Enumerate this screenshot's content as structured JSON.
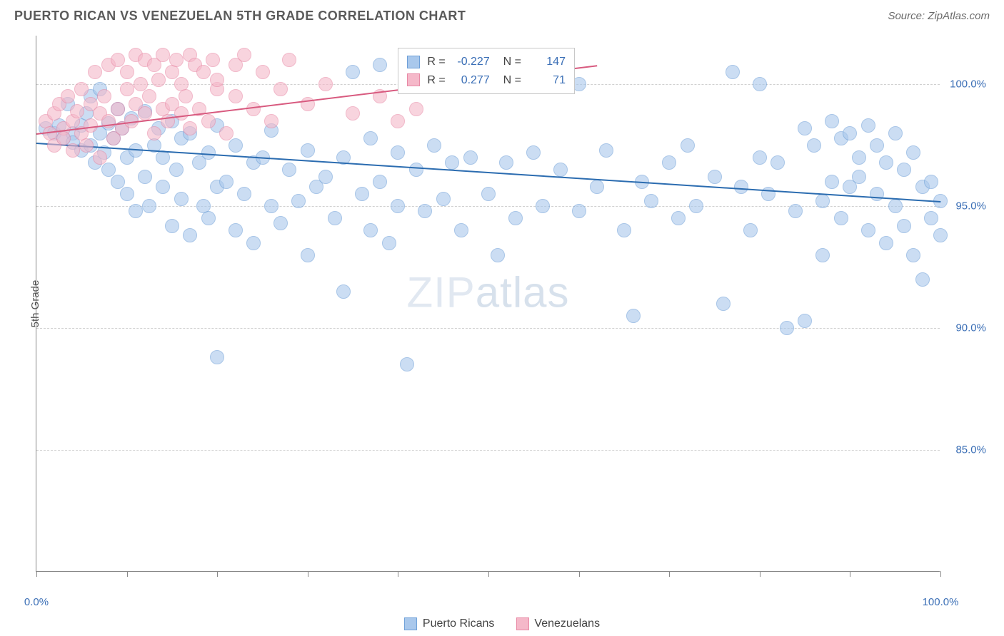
{
  "header": {
    "title": "PUERTO RICAN VS VENEZUELAN 5TH GRADE CORRELATION CHART",
    "source": "Source: ZipAtlas.com"
  },
  "chart": {
    "type": "scatter",
    "ylabel": "5th Grade",
    "watermark": "ZIPatlas",
    "background_color": "#ffffff",
    "grid_color": "#d0d0d0",
    "axis_color": "#888888",
    "label_fontsize": 15,
    "tick_fontcolor": "#3b6fb6",
    "xlim": [
      0,
      100
    ],
    "ylim": [
      80,
      102
    ],
    "xticks": [
      0,
      10,
      20,
      30,
      40,
      50,
      60,
      70,
      80,
      90,
      100
    ],
    "xtick_labels": {
      "0": "0.0%",
      "100": "100.0%"
    },
    "yticks": [
      85,
      90,
      95,
      100
    ],
    "ytick_labels": {
      "85": "85.0%",
      "90": "90.0%",
      "95": "95.0%",
      "100": "100.0%"
    },
    "point_radius": 10,
    "series": [
      {
        "name": "Puerto Ricans",
        "color_fill": "#a9c8ec",
        "color_stroke": "#6fa0d8",
        "opacity": 0.6,
        "trend": {
          "x1": 0,
          "y1": 97.6,
          "x2": 100,
          "y2": 95.2,
          "color": "#2b6cb0",
          "width": 2
        },
        "R": "-0.227",
        "N": "147",
        "points": [
          [
            1,
            98.2
          ],
          [
            2,
            98.0
          ],
          [
            2.5,
            98.3
          ],
          [
            3,
            97.8
          ],
          [
            3.5,
            99.2
          ],
          [
            4,
            98.0
          ],
          [
            4,
            97.6
          ],
          [
            5,
            98.3
          ],
          [
            5,
            97.3
          ],
          [
            5.5,
            98.8
          ],
          [
            6,
            97.5
          ],
          [
            6,
            99.5
          ],
          [
            6.5,
            96.8
          ],
          [
            7,
            98.0
          ],
          [
            7,
            99.8
          ],
          [
            7.5,
            97.2
          ],
          [
            8,
            98.4
          ],
          [
            8,
            96.5
          ],
          [
            8.5,
            97.8
          ],
          [
            9,
            99.0
          ],
          [
            9,
            96.0
          ],
          [
            9.5,
            98.2
          ],
          [
            10,
            97.0
          ],
          [
            10,
            95.5
          ],
          [
            10.5,
            98.6
          ],
          [
            11,
            97.3
          ],
          [
            11,
            94.8
          ],
          [
            12,
            98.9
          ],
          [
            12,
            96.2
          ],
          [
            12.5,
            95.0
          ],
          [
            13,
            97.5
          ],
          [
            13.5,
            98.2
          ],
          [
            14,
            95.8
          ],
          [
            14,
            97.0
          ],
          [
            15,
            98.5
          ],
          [
            15,
            94.2
          ],
          [
            15.5,
            96.5
          ],
          [
            16,
            97.8
          ],
          [
            16,
            95.3
          ],
          [
            17,
            98.0
          ],
          [
            17,
            93.8
          ],
          [
            18,
            96.8
          ],
          [
            18.5,
            95.0
          ],
          [
            19,
            97.2
          ],
          [
            19,
            94.5
          ],
          [
            20,
            98.3
          ],
          [
            20,
            95.8
          ],
          [
            20,
            88.8
          ],
          [
            21,
            96.0
          ],
          [
            22,
            94.0
          ],
          [
            22,
            97.5
          ],
          [
            23,
            95.5
          ],
          [
            24,
            96.8
          ],
          [
            24,
            93.5
          ],
          [
            25,
            97.0
          ],
          [
            26,
            95.0
          ],
          [
            26,
            98.1
          ],
          [
            27,
            94.3
          ],
          [
            28,
            96.5
          ],
          [
            29,
            95.2
          ],
          [
            30,
            97.3
          ],
          [
            30,
            93.0
          ],
          [
            31,
            95.8
          ],
          [
            32,
            96.2
          ],
          [
            33,
            94.5
          ],
          [
            34,
            91.5
          ],
          [
            34,
            97.0
          ],
          [
            35,
            100.5
          ],
          [
            36,
            95.5
          ],
          [
            37,
            94.0
          ],
          [
            37,
            97.8
          ],
          [
            38,
            100.8
          ],
          [
            38,
            96.0
          ],
          [
            39,
            93.5
          ],
          [
            40,
            97.2
          ],
          [
            40,
            95.0
          ],
          [
            41,
            88.5
          ],
          [
            42,
            96.5
          ],
          [
            43,
            94.8
          ],
          [
            44,
            97.5
          ],
          [
            45,
            95.3
          ],
          [
            46,
            96.8
          ],
          [
            47,
            94.0
          ],
          [
            48,
            97.0
          ],
          [
            50,
            95.5
          ],
          [
            51,
            93.0
          ],
          [
            52,
            96.8
          ],
          [
            53,
            94.5
          ],
          [
            55,
            97.2
          ],
          [
            55,
            100.2
          ],
          [
            56,
            95.0
          ],
          [
            57,
            100.5
          ],
          [
            58,
            96.5
          ],
          [
            60,
            94.8
          ],
          [
            60,
            100.0
          ],
          [
            62,
            95.8
          ],
          [
            63,
            97.3
          ],
          [
            65,
            94.0
          ],
          [
            66,
            90.5
          ],
          [
            67,
            96.0
          ],
          [
            68,
            95.2
          ],
          [
            70,
            96.8
          ],
          [
            71,
            94.5
          ],
          [
            72,
            97.5
          ],
          [
            73,
            95.0
          ],
          [
            75,
            96.2
          ],
          [
            76,
            91.0
          ],
          [
            77,
            100.5
          ],
          [
            78,
            95.8
          ],
          [
            79,
            94.0
          ],
          [
            80,
            97.0
          ],
          [
            80,
            100.0
          ],
          [
            81,
            95.5
          ],
          [
            82,
            96.8
          ],
          [
            83,
            90.0
          ],
          [
            84,
            94.8
          ],
          [
            85,
            98.2
          ],
          [
            85,
            90.3
          ],
          [
            86,
            97.5
          ],
          [
            87,
            95.2
          ],
          [
            87,
            93.0
          ],
          [
            88,
            96.0
          ],
          [
            88,
            98.5
          ],
          [
            89,
            94.5
          ],
          [
            89,
            97.8
          ],
          [
            90,
            95.8
          ],
          [
            90,
            98.0
          ],
          [
            91,
            97.0
          ],
          [
            91,
            96.2
          ],
          [
            92,
            98.3
          ],
          [
            92,
            94.0
          ],
          [
            93,
            95.5
          ],
          [
            93,
            97.5
          ],
          [
            94,
            96.8
          ],
          [
            94,
            93.5
          ],
          [
            95,
            98.0
          ],
          [
            95,
            95.0
          ],
          [
            96,
            96.5
          ],
          [
            96,
            94.2
          ],
          [
            97,
            97.2
          ],
          [
            97,
            93.0
          ],
          [
            98,
            95.8
          ],
          [
            98,
            92.0
          ],
          [
            99,
            94.5
          ],
          [
            99,
            96.0
          ],
          [
            100,
            93.8
          ],
          [
            100,
            95.2
          ]
        ]
      },
      {
        "name": "Venezuelans",
        "color_fill": "#f5b8c9",
        "color_stroke": "#e88aa6",
        "opacity": 0.6,
        "trend": {
          "x1": 0,
          "y1": 98.0,
          "x2": 62,
          "y2": 100.8,
          "color": "#d85a7f",
          "width": 2,
          "dashed_after_x": 38
        },
        "R": "0.277",
        "N": "71",
        "points": [
          [
            1,
            98.5
          ],
          [
            1.5,
            98.0
          ],
          [
            2,
            98.8
          ],
          [
            2,
            97.5
          ],
          [
            2.5,
            99.2
          ],
          [
            3,
            98.2
          ],
          [
            3,
            97.8
          ],
          [
            3.5,
            99.5
          ],
          [
            4,
            98.5
          ],
          [
            4,
            97.3
          ],
          [
            4.5,
            98.9
          ],
          [
            5,
            99.8
          ],
          [
            5,
            98.0
          ],
          [
            5.5,
            97.5
          ],
          [
            6,
            99.2
          ],
          [
            6,
            98.3
          ],
          [
            6.5,
            100.5
          ],
          [
            7,
            98.8
          ],
          [
            7,
            97.0
          ],
          [
            7.5,
            99.5
          ],
          [
            8,
            98.5
          ],
          [
            8,
            100.8
          ],
          [
            8.5,
            97.8
          ],
          [
            9,
            99.0
          ],
          [
            9,
            101.0
          ],
          [
            9.5,
            98.2
          ],
          [
            10,
            99.8
          ],
          [
            10,
            100.5
          ],
          [
            10.5,
            98.5
          ],
          [
            11,
            101.2
          ],
          [
            11,
            99.2
          ],
          [
            11.5,
            100.0
          ],
          [
            12,
            98.8
          ],
          [
            12,
            101.0
          ],
          [
            12.5,
            99.5
          ],
          [
            13,
            100.8
          ],
          [
            13,
            98.0
          ],
          [
            13.5,
            100.2
          ],
          [
            14,
            99.0
          ],
          [
            14,
            101.2
          ],
          [
            14.5,
            98.5
          ],
          [
            15,
            100.5
          ],
          [
            15,
            99.2
          ],
          [
            15.5,
            101.0
          ],
          [
            16,
            98.8
          ],
          [
            16,
            100.0
          ],
          [
            16.5,
            99.5
          ],
          [
            17,
            101.2
          ],
          [
            17,
            98.2
          ],
          [
            17.5,
            100.8
          ],
          [
            18,
            99.0
          ],
          [
            18.5,
            100.5
          ],
          [
            19,
            98.5
          ],
          [
            19.5,
            101.0
          ],
          [
            20,
            99.8
          ],
          [
            20,
            100.2
          ],
          [
            21,
            98.0
          ],
          [
            22,
            100.8
          ],
          [
            22,
            99.5
          ],
          [
            23,
            101.2
          ],
          [
            24,
            99.0
          ],
          [
            25,
            100.5
          ],
          [
            26,
            98.5
          ],
          [
            27,
            99.8
          ],
          [
            28,
            101.0
          ],
          [
            30,
            99.2
          ],
          [
            32,
            100.0
          ],
          [
            35,
            98.8
          ],
          [
            38,
            99.5
          ],
          [
            40,
            98.5
          ],
          [
            42,
            99.0
          ]
        ]
      }
    ],
    "legend_bottom": [
      {
        "label": "Puerto Ricans",
        "fill": "#a9c8ec",
        "stroke": "#6fa0d8"
      },
      {
        "label": "Venezuelans",
        "fill": "#f5b8c9",
        "stroke": "#e88aa6"
      }
    ]
  }
}
